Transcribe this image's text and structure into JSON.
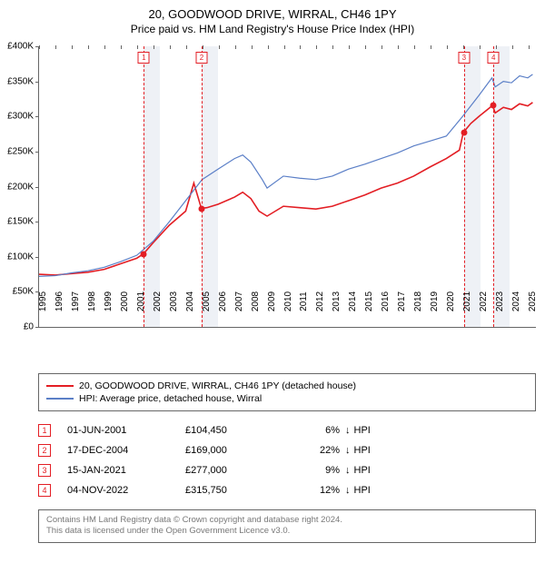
{
  "title": {
    "main": "20, GOODWOOD DRIVE, WIRRAL, CH46 1PY",
    "sub": "Price paid vs. HM Land Registry's House Price Index (HPI)"
  },
  "chart": {
    "type": "line",
    "xlim": [
      1995,
      2025.5
    ],
    "ylim": [
      0,
      400000
    ],
    "y_ticks": [
      0,
      50000,
      100000,
      150000,
      200000,
      250000,
      300000,
      350000,
      400000
    ],
    "y_tick_labels": [
      "£0",
      "£50K",
      "£100K",
      "£150K",
      "£200K",
      "£250K",
      "£300K",
      "£350K",
      "£400K"
    ],
    "x_ticks": [
      1995,
      1996,
      1997,
      1998,
      1999,
      2000,
      2001,
      2002,
      2003,
      2004,
      2005,
      2006,
      2007,
      2008,
      2009,
      2010,
      2011,
      2012,
      2013,
      2014,
      2015,
      2016,
      2017,
      2018,
      2019,
      2020,
      2021,
      2022,
      2023,
      2024,
      2025
    ],
    "background_color": "#ffffff",
    "axis_color": "#666666",
    "band_color": "#eef1f6",
    "series": [
      {
        "name": "price_paid",
        "label": "20, GOODWOOD DRIVE, WIRRAL, CH46 1PY (detached house)",
        "color": "#e31e24",
        "width": 1.6,
        "points": [
          [
            1995,
            75000
          ],
          [
            1996,
            74000
          ],
          [
            1997,
            76000
          ],
          [
            1998,
            78000
          ],
          [
            1999,
            82000
          ],
          [
            2000,
            90000
          ],
          [
            2001,
            98000
          ],
          [
            2001.42,
            104450
          ],
          [
            2002,
            120000
          ],
          [
            2003,
            145000
          ],
          [
            2004,
            165000
          ],
          [
            2004.5,
            205000
          ],
          [
            2004.96,
            169000
          ],
          [
            2005.3,
            170000
          ],
          [
            2006,
            175000
          ],
          [
            2007,
            185000
          ],
          [
            2007.5,
            192000
          ],
          [
            2008,
            183000
          ],
          [
            2008.5,
            165000
          ],
          [
            2009,
            158000
          ],
          [
            2010,
            172000
          ],
          [
            2011,
            170000
          ],
          [
            2012,
            168000
          ],
          [
            2013,
            172000
          ],
          [
            2014,
            180000
          ],
          [
            2015,
            188000
          ],
          [
            2016,
            198000
          ],
          [
            2017,
            205000
          ],
          [
            2018,
            215000
          ],
          [
            2019,
            228000
          ],
          [
            2020,
            240000
          ],
          [
            2020.8,
            252000
          ],
          [
            2021.04,
            277000
          ],
          [
            2021.5,
            290000
          ],
          [
            2022,
            300000
          ],
          [
            2022.84,
            315750
          ],
          [
            2023,
            305000
          ],
          [
            2023.5,
            313000
          ],
          [
            2024,
            310000
          ],
          [
            2024.5,
            318000
          ],
          [
            2025,
            315000
          ],
          [
            2025.3,
            320000
          ]
        ]
      },
      {
        "name": "hpi",
        "label": "HPI: Average price, detached house, Wirral",
        "color": "#5b7fc7",
        "width": 1.2,
        "points": [
          [
            1995,
            72000
          ],
          [
            1996,
            73000
          ],
          [
            1997,
            77000
          ],
          [
            1998,
            80000
          ],
          [
            1999,
            85000
          ],
          [
            2000,
            93000
          ],
          [
            2001,
            102000
          ],
          [
            2002,
            122000
          ],
          [
            2003,
            150000
          ],
          [
            2004,
            180000
          ],
          [
            2005,
            210000
          ],
          [
            2006,
            225000
          ],
          [
            2007,
            240000
          ],
          [
            2007.5,
            245000
          ],
          [
            2008,
            235000
          ],
          [
            2008.7,
            210000
          ],
          [
            2009,
            198000
          ],
          [
            2010,
            215000
          ],
          [
            2011,
            212000
          ],
          [
            2012,
            210000
          ],
          [
            2013,
            215000
          ],
          [
            2014,
            225000
          ],
          [
            2015,
            232000
          ],
          [
            2016,
            240000
          ],
          [
            2017,
            248000
          ],
          [
            2018,
            258000
          ],
          [
            2019,
            265000
          ],
          [
            2020,
            272000
          ],
          [
            2021,
            300000
          ],
          [
            2022,
            330000
          ],
          [
            2022.8,
            355000
          ],
          [
            2023,
            342000
          ],
          [
            2023.5,
            350000
          ],
          [
            2024,
            348000
          ],
          [
            2024.5,
            358000
          ],
          [
            2025,
            355000
          ],
          [
            2025.3,
            360000
          ]
        ]
      }
    ],
    "sale_markers": [
      {
        "n": "1",
        "x": 2001.42,
        "y": 104450,
        "color": "#e31e24"
      },
      {
        "n": "2",
        "x": 2004.96,
        "y": 169000,
        "color": "#e31e24"
      },
      {
        "n": "3",
        "x": 2021.04,
        "y": 277000,
        "color": "#e31e24"
      },
      {
        "n": "4",
        "x": 2022.84,
        "y": 315750,
        "color": "#e31e24"
      }
    ],
    "bands": [
      {
        "from": 2001.42,
        "to": 2002.42
      },
      {
        "from": 2004.96,
        "to": 2005.96
      },
      {
        "from": 2021.04,
        "to": 2022.04
      },
      {
        "from": 2022.84,
        "to": 2023.84
      }
    ]
  },
  "legend": {
    "items": [
      {
        "color": "#e31e24",
        "label": "20, GOODWOOD DRIVE, WIRRAL, CH46 1PY (detached house)"
      },
      {
        "color": "#5b7fc7",
        "label": "HPI: Average price, detached house, Wirral"
      }
    ]
  },
  "sales": [
    {
      "n": "1",
      "date": "01-JUN-2001",
      "price": "£104,450",
      "diff": "6%",
      "arrow": "↓",
      "vs": "HPI",
      "color": "#e31e24"
    },
    {
      "n": "2",
      "date": "17-DEC-2004",
      "price": "£169,000",
      "diff": "22%",
      "arrow": "↓",
      "vs": "HPI",
      "color": "#e31e24"
    },
    {
      "n": "3",
      "date": "15-JAN-2021",
      "price": "£277,000",
      "diff": "9%",
      "arrow": "↓",
      "vs": "HPI",
      "color": "#e31e24"
    },
    {
      "n": "4",
      "date": "04-NOV-2022",
      "price": "£315,750",
      "diff": "12%",
      "arrow": "↓",
      "vs": "HPI",
      "color": "#e31e24"
    }
  ],
  "footer": {
    "line1": "Contains HM Land Registry data © Crown copyright and database right 2024.",
    "line2": "This data is licensed under the Open Government Licence v3.0."
  }
}
